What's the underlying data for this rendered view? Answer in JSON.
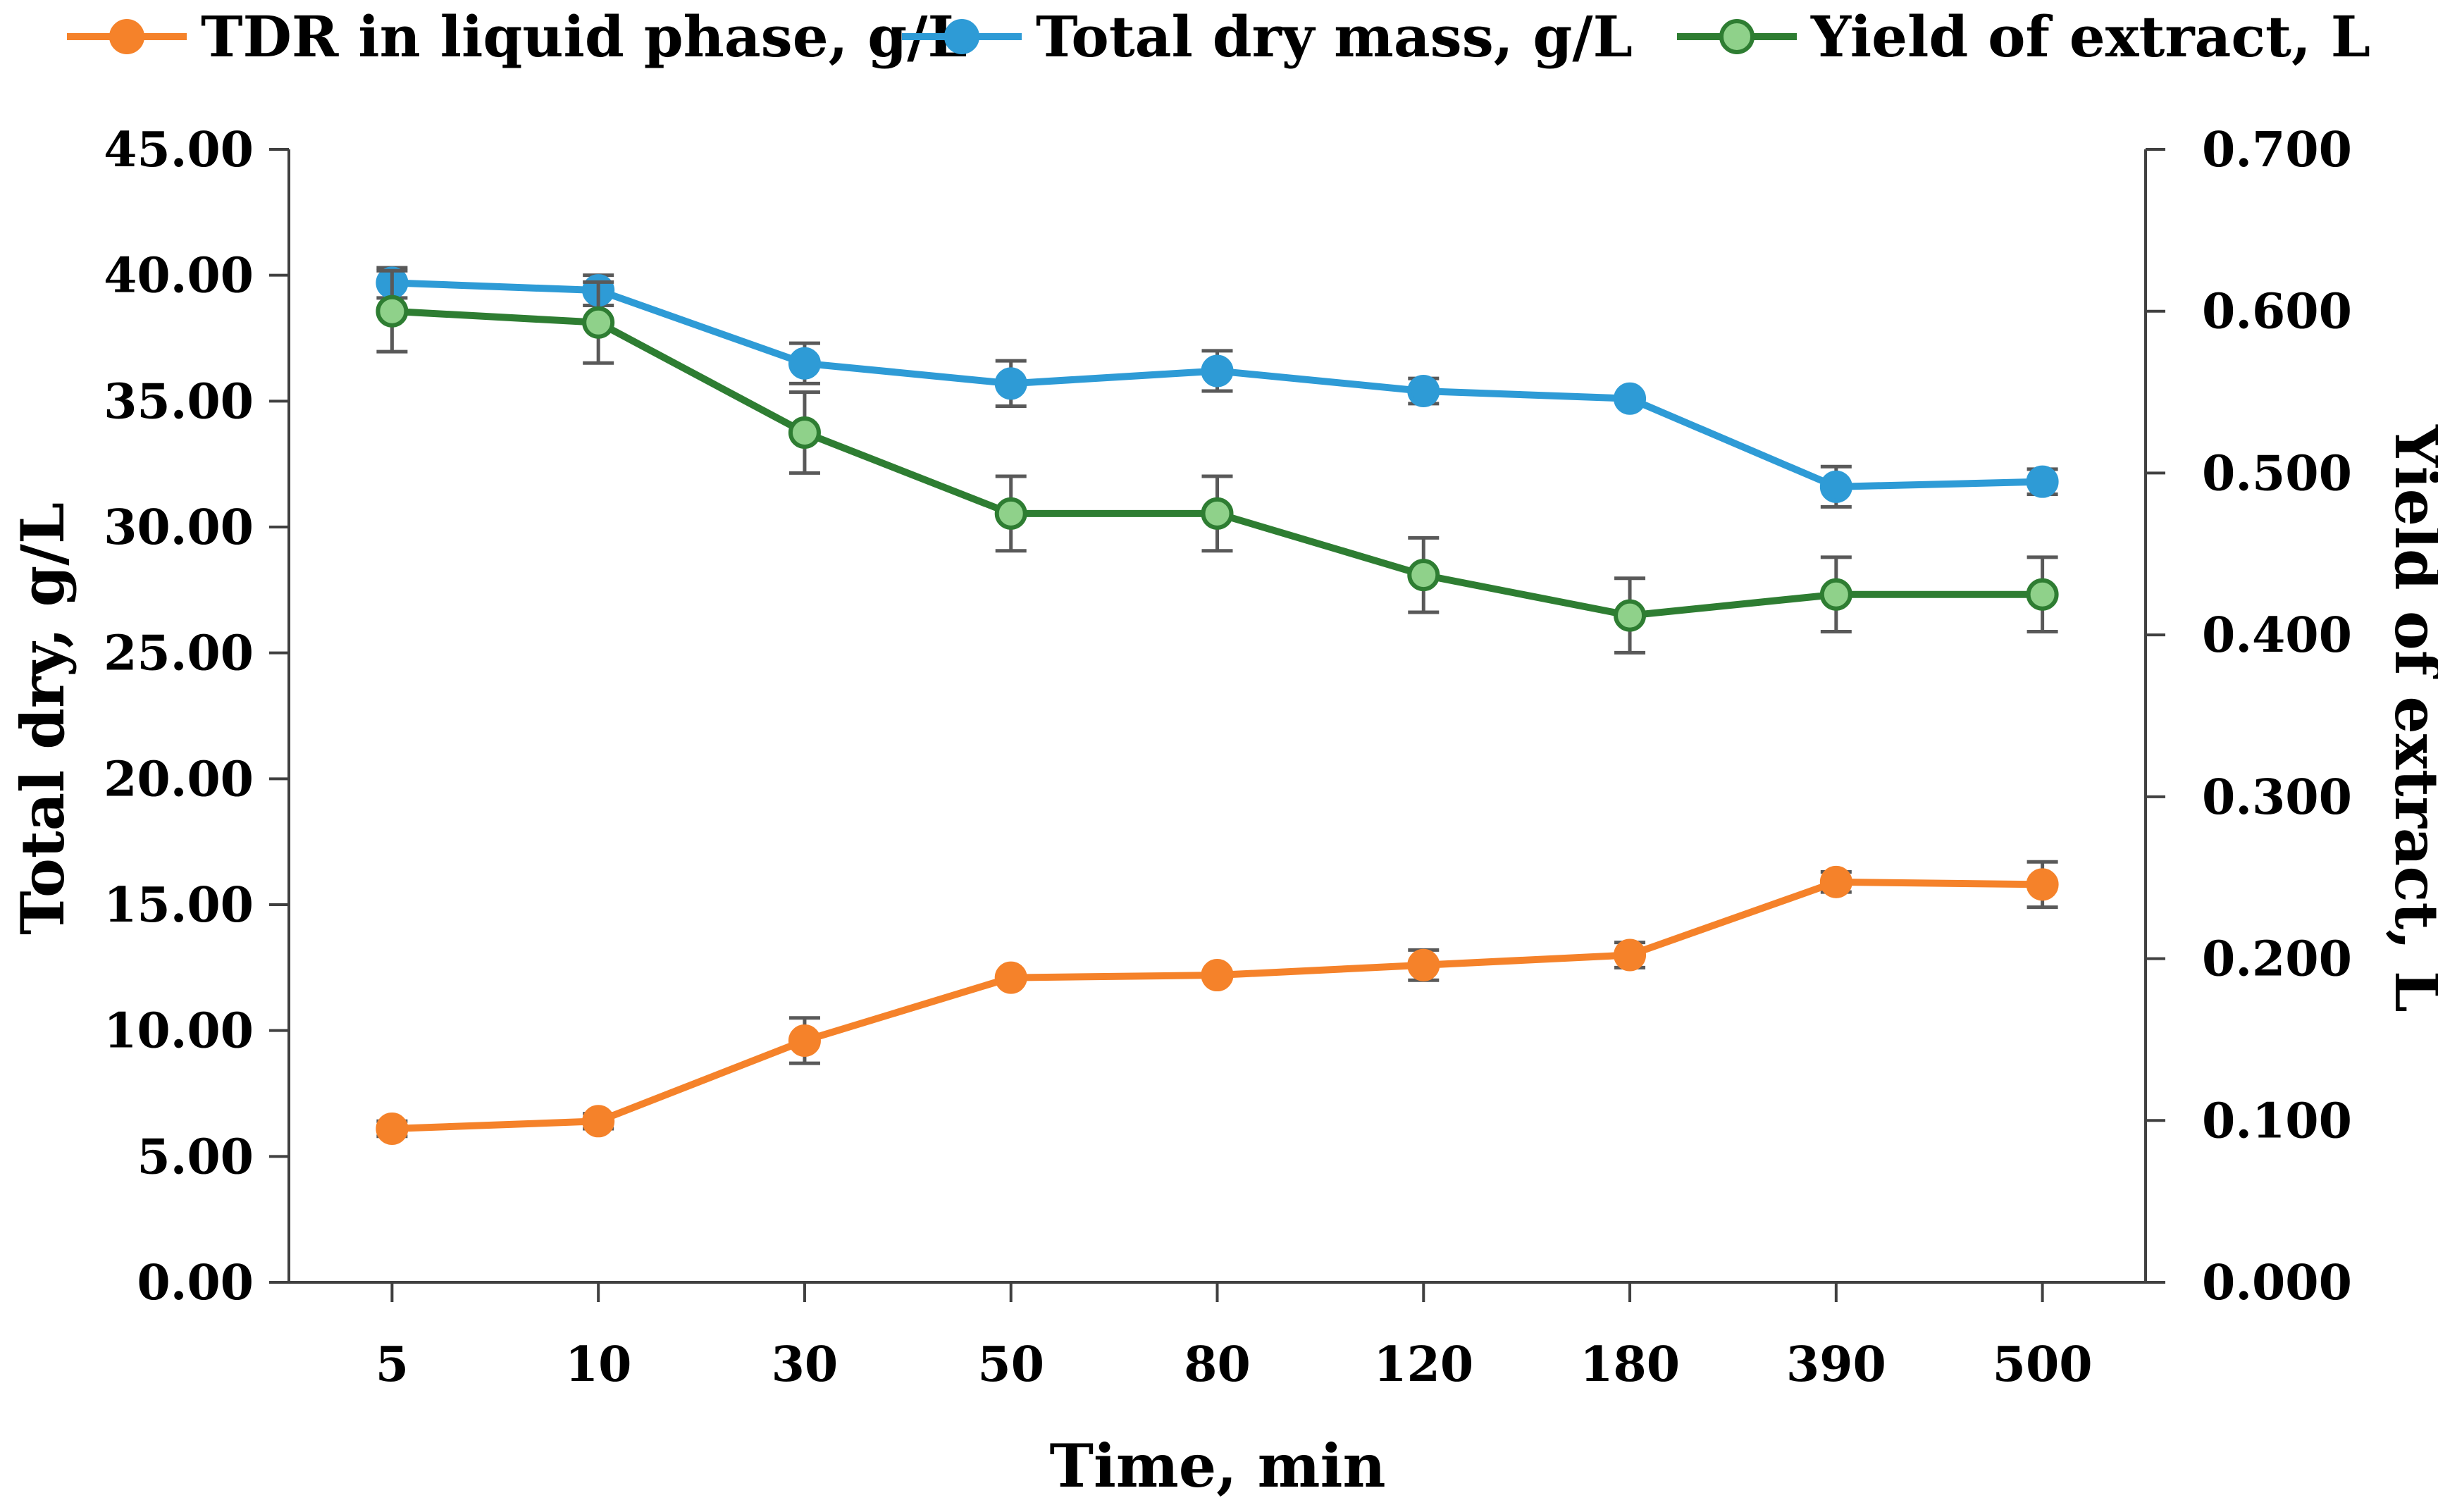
{
  "chart_data": {
    "type": "line",
    "categories": [
      "5",
      "10",
      "30",
      "50",
      "80",
      "120",
      "180",
      "390",
      "500"
    ],
    "xlabel": "Time, min",
    "ylabel_left": "Total dry, g/L",
    "ylabel_right": "Yield of extract, L",
    "ylim_left": [
      0,
      45
    ],
    "ylim_right": [
      0,
      0.7
    ],
    "yticks_left": [
      "0.00",
      "5.00",
      "10.00",
      "15.00",
      "20.00",
      "25.00",
      "30.00",
      "35.00",
      "40.00",
      "45.00"
    ],
    "yticks_right": [
      "0.000",
      "0.100",
      "0.200",
      "0.300",
      "0.400",
      "0.500",
      "0.600",
      "0.700"
    ],
    "grid": false,
    "legend_position": "top",
    "series": [
      {
        "name": "TDR in liquid phase, g/L",
        "axis": "left",
        "color": "#F5822A",
        "marker_fill": "#F5822A",
        "marker_stroke": "#F5822A",
        "values": [
          6.1,
          6.4,
          9.6,
          12.1,
          12.2,
          12.6,
          13.0,
          15.9,
          15.8
        ],
        "errors": [
          0.3,
          0.3,
          0.9,
          0.0,
          0.0,
          0.6,
          0.5,
          0.4,
          0.9
        ]
      },
      {
        "name": "Total dry mass, g/L",
        "axis": "left",
        "color": "#2E9BD6",
        "marker_fill": "#2E9BD6",
        "marker_stroke": "#2E9BD6",
        "values": [
          39.7,
          39.4,
          36.5,
          35.7,
          36.2,
          35.4,
          35.1,
          31.6,
          31.8
        ],
        "errors": [
          0.6,
          0.6,
          0.8,
          0.9,
          0.8,
          0.5,
          0.0,
          0.8,
          0.5
        ]
      },
      {
        "name": "Yield of extract, L",
        "axis": "right",
        "color": "#2E7D32",
        "marker_fill": "#8FD18A",
        "marker_stroke": "#2E7D32",
        "values": [
          0.6,
          0.593,
          0.525,
          0.475,
          0.475,
          0.437,
          0.412,
          0.425,
          0.425
        ],
        "errors": [
          0.025,
          0.025,
          0.025,
          0.023,
          0.023,
          0.023,
          0.023,
          0.023,
          0.023
        ]
      }
    ]
  }
}
